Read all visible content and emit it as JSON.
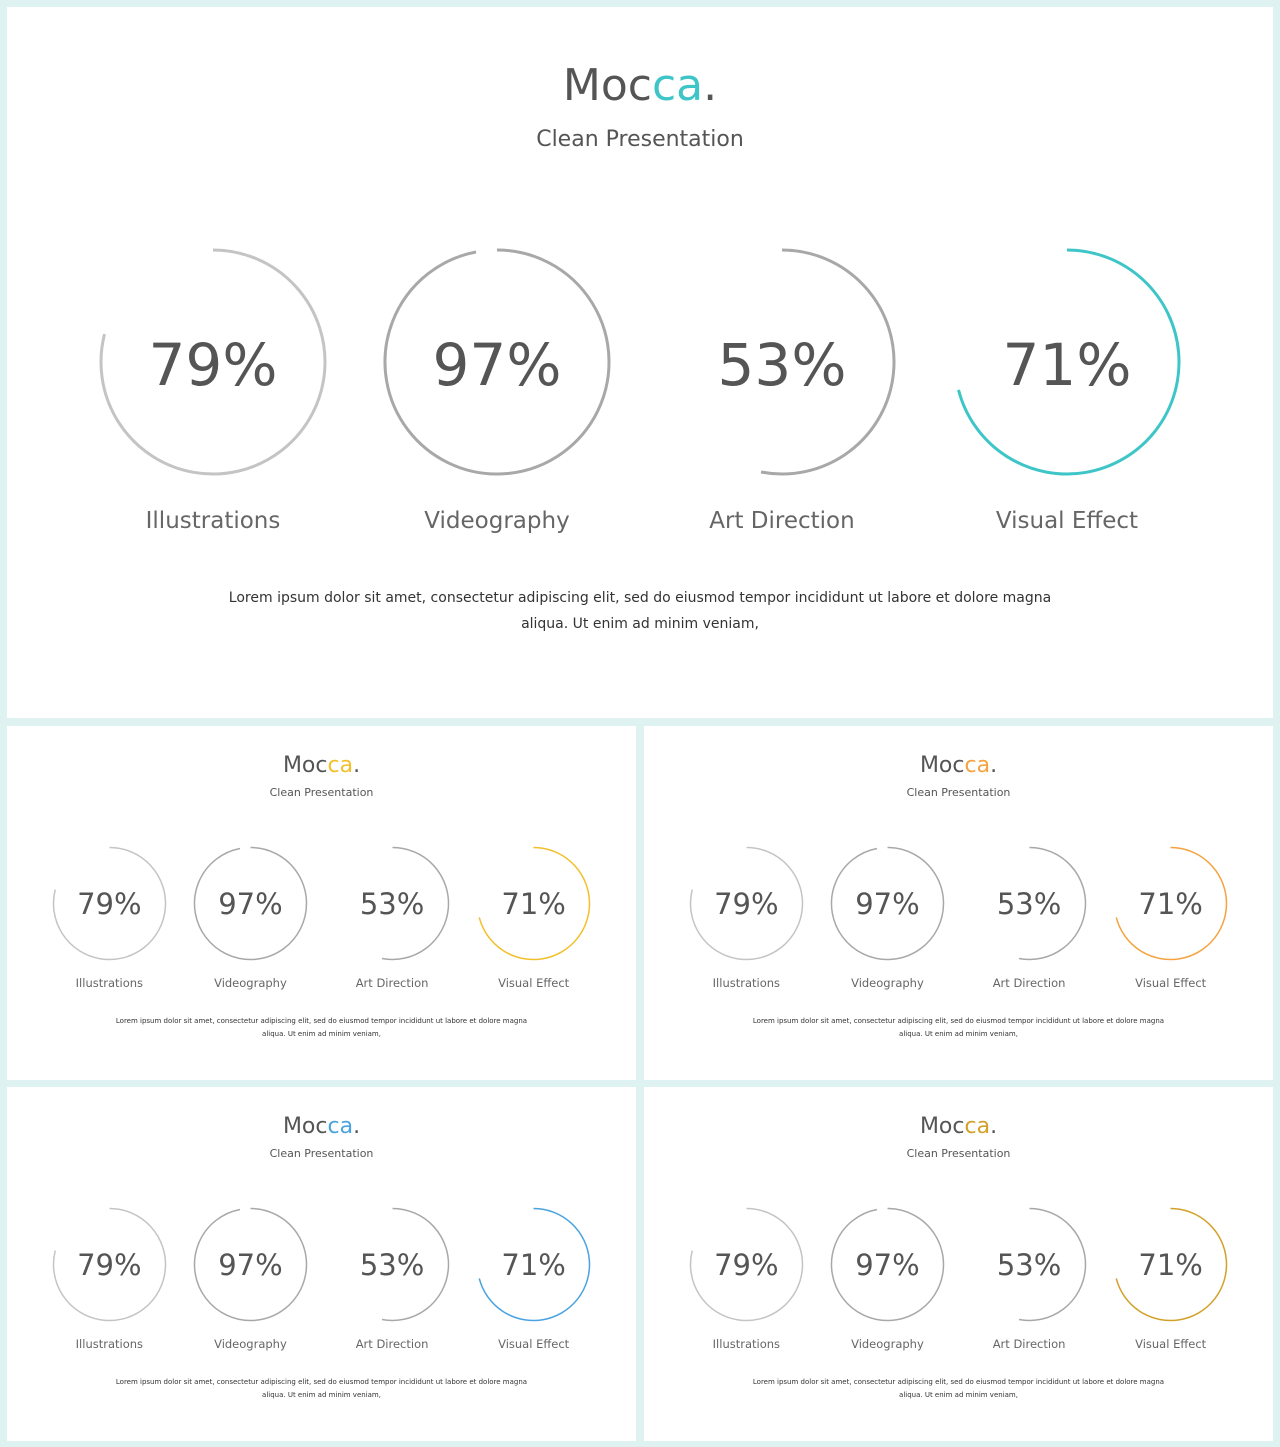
{
  "brand": {
    "prefix": "Moc",
    "accent": "ca",
    "suffix": "."
  },
  "subtitle": "Clean Presentation",
  "description_line1": "Lorem ipsum dolor sit amet, consectetur adipiscing elit, sed do eiusmod tempor incididunt ut labore et dolore magna",
  "description_line2": "aliqua. Ut enim ad minim veniam,",
  "items": [
    {
      "label": "Illustrations",
      "value_text": "79%",
      "value": 79,
      "color": "#c4c4c4"
    },
    {
      "label": "Videography",
      "value_text": "97%",
      "value": 97,
      "color": "#a8a8a8"
    },
    {
      "label": "Art Direction",
      "value_text": "53%",
      "value": 53,
      "color": "#a8a8a8"
    },
    {
      "label": "Visual Effect",
      "value_text": "71%",
      "value": 71,
      "color": "accent"
    }
  ],
  "variants": [
    {
      "accent_color": "#3ec5c8"
    },
    {
      "accent_color": "#f2c02c"
    },
    {
      "accent_color": "#f4a340"
    },
    {
      "accent_color": "#4aa3e0"
    },
    {
      "accent_color": "#d2a12a"
    }
  ]
}
